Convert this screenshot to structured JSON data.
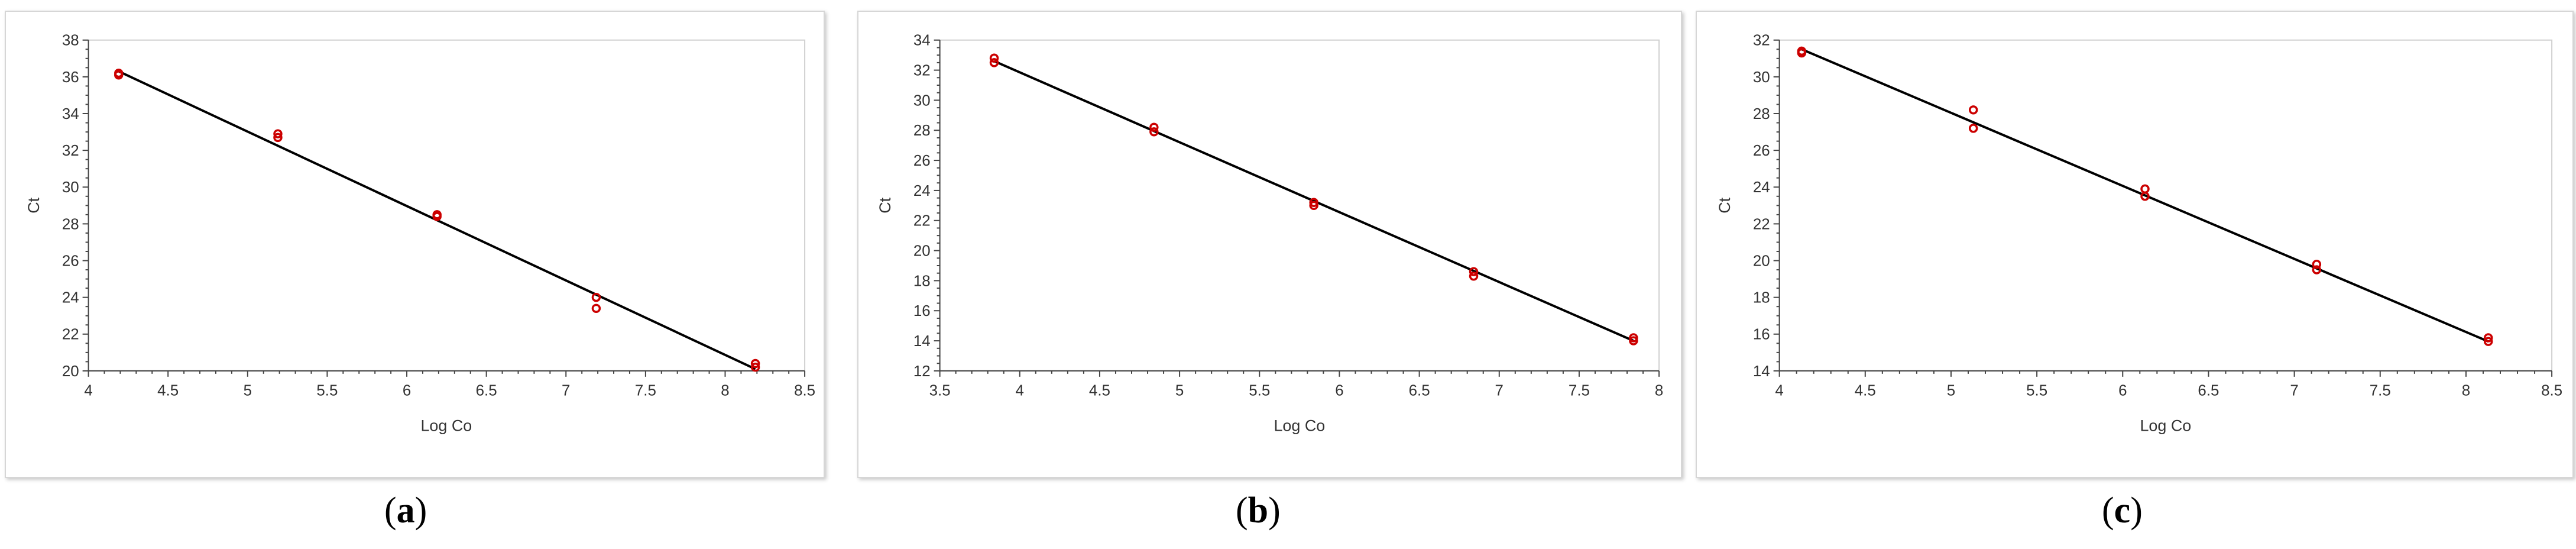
{
  "colors": {
    "line": "#000000",
    "marker": "#cc0000",
    "axis": "#444444",
    "frame": "#d0d0d0",
    "text": "#333333"
  },
  "chart_data": [
    {
      "type": "scatter",
      "panel": "a",
      "caption_letter": "a",
      "xlabel": "Log Co",
      "ylabel": "Ct",
      "xlim": [
        4,
        8.5
      ],
      "ylim": [
        20,
        38
      ],
      "xticks": [
        "4",
        "4.5",
        "5",
        "5.5",
        "6",
        "6.5",
        "7",
        "7.5",
        "8",
        "8.5"
      ],
      "xtick_values": [
        4,
        4.5,
        5,
        5.5,
        6,
        6.5,
        7,
        7.5,
        8,
        8.5
      ],
      "yticks": [
        "20",
        "22",
        "24",
        "26",
        "28",
        "30",
        "32",
        "34",
        "36",
        "38"
      ],
      "ytick_values": [
        20,
        22,
        24,
        26,
        28,
        30,
        32,
        34,
        36,
        38
      ],
      "points": [
        {
          "x": 4.19,
          "y": 36.2
        },
        {
          "x": 4.19,
          "y": 36.1
        },
        {
          "x": 5.19,
          "y": 32.9
        },
        {
          "x": 5.19,
          "y": 32.7
        },
        {
          "x": 6.19,
          "y": 28.5
        },
        {
          "x": 6.19,
          "y": 28.4
        },
        {
          "x": 7.19,
          "y": 24.0
        },
        {
          "x": 7.19,
          "y": 23.4
        },
        {
          "x": 8.19,
          "y": 20.4
        },
        {
          "x": 8.19,
          "y": 20.2
        }
      ],
      "fit_line": {
        "x1": 4.19,
        "y1": 36.3,
        "x2": 8.19,
        "y2": 20.1
      }
    },
    {
      "type": "scatter",
      "panel": "b",
      "caption_letter": "b",
      "xlabel": "Log Co",
      "ylabel": "Ct",
      "xlim": [
        3.5,
        8
      ],
      "ylim": [
        12,
        34
      ],
      "xticks": [
        "3.5",
        "4",
        "4.5",
        "5",
        "5.5",
        "6",
        "6.5",
        "7",
        "7.5",
        "8"
      ],
      "xtick_values": [
        3.5,
        4,
        4.5,
        5,
        5.5,
        6,
        6.5,
        7,
        7.5,
        8
      ],
      "yticks": [
        "12",
        "14",
        "16",
        "18",
        "20",
        "22",
        "24",
        "26",
        "28",
        "30",
        "32",
        "34"
      ],
      "ytick_values": [
        12,
        14,
        16,
        18,
        20,
        22,
        24,
        26,
        28,
        30,
        32,
        34
      ],
      "points": [
        {
          "x": 3.84,
          "y": 32.8
        },
        {
          "x": 3.84,
          "y": 32.5
        },
        {
          "x": 4.84,
          "y": 28.2
        },
        {
          "x": 4.84,
          "y": 27.9
        },
        {
          "x": 5.84,
          "y": 23.2
        },
        {
          "x": 5.84,
          "y": 23.0
        },
        {
          "x": 6.84,
          "y": 18.6
        },
        {
          "x": 6.84,
          "y": 18.3
        },
        {
          "x": 7.84,
          "y": 14.2
        },
        {
          "x": 7.84,
          "y": 14.0
        }
      ],
      "fit_line": {
        "x1": 3.84,
        "y1": 32.6,
        "x2": 7.84,
        "y2": 14.0
      }
    },
    {
      "type": "scatter",
      "panel": "c",
      "caption_letter": "c",
      "xlabel": "Log Co",
      "ylabel": "Ct",
      "xlim": [
        4,
        8.5
      ],
      "ylim": [
        14,
        32
      ],
      "xticks": [
        "4",
        "4.5",
        "5",
        "5.5",
        "6",
        "6.5",
        "7",
        "7.5",
        "8",
        "8.5"
      ],
      "xtick_values": [
        4,
        4.5,
        5,
        5.5,
        6,
        6.5,
        7,
        7.5,
        8,
        8.5
      ],
      "yticks": [
        "14",
        "16",
        "18",
        "20",
        "22",
        "24",
        "26",
        "28",
        "30",
        "32"
      ],
      "ytick_values": [
        14,
        16,
        18,
        20,
        22,
        24,
        26,
        28,
        30,
        32
      ],
      "points": [
        {
          "x": 4.13,
          "y": 31.4
        },
        {
          "x": 4.13,
          "y": 31.3
        },
        {
          "x": 5.13,
          "y": 28.2
        },
        {
          "x": 5.13,
          "y": 27.2
        },
        {
          "x": 6.13,
          "y": 23.9
        },
        {
          "x": 6.13,
          "y": 23.5
        },
        {
          "x": 7.13,
          "y": 19.8
        },
        {
          "x": 7.13,
          "y": 19.5
        },
        {
          "x": 8.13,
          "y": 15.8
        },
        {
          "x": 8.13,
          "y": 15.6
        }
      ],
      "fit_line": {
        "x1": 4.13,
        "y1": 31.5,
        "x2": 8.13,
        "y2": 15.6
      }
    }
  ]
}
